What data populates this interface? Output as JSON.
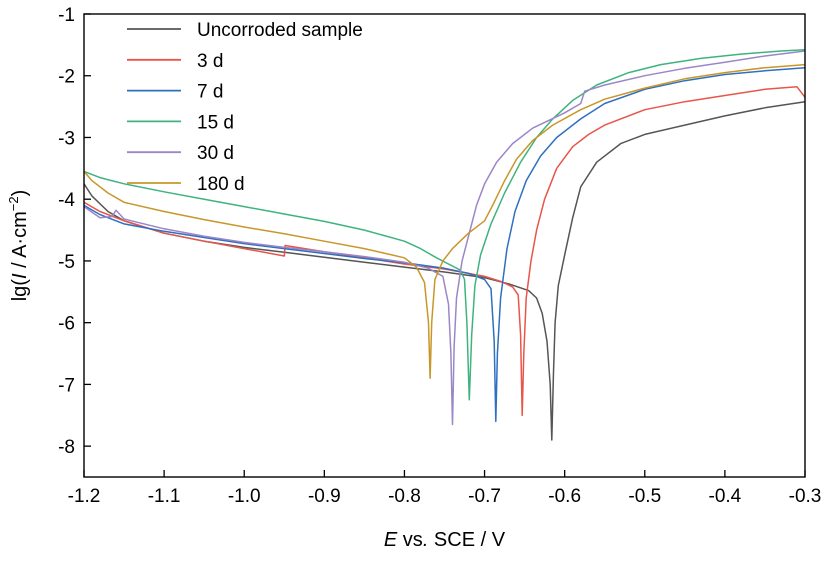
{
  "chart_data": {
    "type": "line",
    "xlabel": {
      "italic": "E",
      "mid": " vs",
      "italic2": ".",
      "rest": " SCE / V"
    },
    "xlabel_text": "E vs. SCE / V",
    "ylabel_text": "lg(I / A·cm−2)",
    "ylabel": {
      "pre": "lg(",
      "italic": "I",
      "mid": " / A·cm",
      "sup": "−2",
      "post": ")"
    },
    "xlim": [
      -1.2,
      -0.3
    ],
    "ylim": [
      -8.5,
      -1
    ],
    "xticks": [
      "-1.2",
      "-1.1",
      "-1.0",
      "-0.9",
      "-0.8",
      "-0.7",
      "-0.6",
      "-0.5",
      "-0.4",
      "-0.3"
    ],
    "yticks": [
      "-1",
      "-2",
      "-3",
      "-4",
      "-5",
      "-6",
      "-7",
      "-8"
    ],
    "legend_position": "top-left",
    "grid": false,
    "series": [
      {
        "name": "Uncorroded sample",
        "color": "#555555",
        "points": [
          [
            -1.2,
            -3.75
          ],
          [
            -1.19,
            -3.95
          ],
          [
            -1.17,
            -4.2
          ],
          [
            -1.15,
            -4.35
          ],
          [
            -1.1,
            -4.55
          ],
          [
            -1.05,
            -4.68
          ],
          [
            -1.0,
            -4.78
          ],
          [
            -0.95,
            -4.86
          ],
          [
            -0.9,
            -4.94
          ],
          [
            -0.85,
            -5.02
          ],
          [
            -0.8,
            -5.1
          ],
          [
            -0.75,
            -5.18
          ],
          [
            -0.7,
            -5.27
          ],
          [
            -0.67,
            -5.37
          ],
          [
            -0.645,
            -5.48
          ],
          [
            -0.635,
            -5.6
          ],
          [
            -0.628,
            -5.85
          ],
          [
            -0.622,
            -6.3
          ],
          [
            -0.618,
            -7.0
          ],
          [
            -0.616,
            -7.9
          ],
          [
            -0.614,
            -6.8
          ],
          [
            -0.612,
            -6.0
          ],
          [
            -0.608,
            -5.4
          ],
          [
            -0.6,
            -4.9
          ],
          [
            -0.59,
            -4.3
          ],
          [
            -0.58,
            -3.8
          ],
          [
            -0.56,
            -3.4
          ],
          [
            -0.53,
            -3.1
          ],
          [
            -0.5,
            -2.95
          ],
          [
            -0.45,
            -2.8
          ],
          [
            -0.4,
            -2.65
          ],
          [
            -0.35,
            -2.52
          ],
          [
            -0.3,
            -2.42
          ]
        ]
      },
      {
        "name": "3 d",
        "color": "#e8554a",
        "points": [
          [
            -1.2,
            -4.05
          ],
          [
            -1.18,
            -4.2
          ],
          [
            -1.15,
            -4.35
          ],
          [
            -1.1,
            -4.55
          ],
          [
            -1.05,
            -4.68
          ],
          [
            -1.0,
            -4.8
          ],
          [
            -0.95,
            -4.92
          ],
          [
            -0.949,
            -4.75
          ],
          [
            -0.9,
            -4.85
          ],
          [
            -0.85,
            -4.95
          ],
          [
            -0.8,
            -5.05
          ],
          [
            -0.75,
            -5.13
          ],
          [
            -0.7,
            -5.25
          ],
          [
            -0.68,
            -5.33
          ],
          [
            -0.665,
            -5.42
          ],
          [
            -0.658,
            -5.55
          ],
          [
            -0.655,
            -6.2
          ],
          [
            -0.653,
            -7.5
          ],
          [
            -0.651,
            -6.5
          ],
          [
            -0.648,
            -5.6
          ],
          [
            -0.642,
            -5.0
          ],
          [
            -0.635,
            -4.5
          ],
          [
            -0.625,
            -4.0
          ],
          [
            -0.61,
            -3.5
          ],
          [
            -0.59,
            -3.15
          ],
          [
            -0.57,
            -2.95
          ],
          [
            -0.55,
            -2.8
          ],
          [
            -0.5,
            -2.55
          ],
          [
            -0.45,
            -2.42
          ],
          [
            -0.4,
            -2.32
          ],
          [
            -0.35,
            -2.22
          ],
          [
            -0.31,
            -2.18
          ],
          [
            -0.3,
            -2.35
          ]
        ]
      },
      {
        "name": "7 d",
        "color": "#2f6fbf",
        "points": [
          [
            -1.2,
            -4.1
          ],
          [
            -1.18,
            -4.25
          ],
          [
            -1.15,
            -4.4
          ],
          [
            -1.1,
            -4.52
          ],
          [
            -1.05,
            -4.62
          ],
          [
            -1.0,
            -4.72
          ],
          [
            -0.95,
            -4.8
          ],
          [
            -0.9,
            -4.88
          ],
          [
            -0.85,
            -4.96
          ],
          [
            -0.8,
            -5.03
          ],
          [
            -0.75,
            -5.12
          ],
          [
            -0.72,
            -5.2
          ],
          [
            -0.7,
            -5.3
          ],
          [
            -0.692,
            -5.45
          ],
          [
            -0.688,
            -6.3
          ],
          [
            -0.686,
            -7.6
          ],
          [
            -0.684,
            -6.5
          ],
          [
            -0.68,
            -5.6
          ],
          [
            -0.672,
            -4.8
          ],
          [
            -0.662,
            -4.2
          ],
          [
            -0.648,
            -3.7
          ],
          [
            -0.63,
            -3.3
          ],
          [
            -0.61,
            -3.0
          ],
          [
            -0.58,
            -2.7
          ],
          [
            -0.55,
            -2.45
          ],
          [
            -0.5,
            -2.22
          ],
          [
            -0.45,
            -2.08
          ],
          [
            -0.4,
            -1.98
          ],
          [
            -0.35,
            -1.92
          ],
          [
            -0.3,
            -1.87
          ]
        ]
      },
      {
        "name": "15 d",
        "color": "#3fb37f",
        "points": [
          [
            -1.2,
            -3.55
          ],
          [
            -1.18,
            -3.65
          ],
          [
            -1.15,
            -3.75
          ],
          [
            -1.1,
            -3.88
          ],
          [
            -1.05,
            -4.0
          ],
          [
            -1.0,
            -4.12
          ],
          [
            -0.95,
            -4.24
          ],
          [
            -0.9,
            -4.36
          ],
          [
            -0.85,
            -4.5
          ],
          [
            -0.8,
            -4.68
          ],
          [
            -0.78,
            -4.8
          ],
          [
            -0.76,
            -4.95
          ],
          [
            -0.745,
            -5.05
          ],
          [
            -0.73,
            -5.15
          ],
          [
            -0.725,
            -5.3
          ],
          [
            -0.722,
            -6.0
          ],
          [
            -0.719,
            -7.25
          ],
          [
            -0.716,
            -6.2
          ],
          [
            -0.712,
            -5.4
          ],
          [
            -0.705,
            -4.9
          ],
          [
            -0.692,
            -4.4
          ],
          [
            -0.675,
            -3.9
          ],
          [
            -0.655,
            -3.4
          ],
          [
            -0.635,
            -3.0
          ],
          [
            -0.615,
            -2.7
          ],
          [
            -0.59,
            -2.4
          ],
          [
            -0.56,
            -2.15
          ],
          [
            -0.52,
            -1.95
          ],
          [
            -0.48,
            -1.82
          ],
          [
            -0.43,
            -1.72
          ],
          [
            -0.38,
            -1.65
          ],
          [
            -0.33,
            -1.6
          ],
          [
            -0.3,
            -1.58
          ]
        ]
      },
      {
        "name": "30 d",
        "color": "#9b86c8",
        "points": [
          [
            -1.2,
            -4.12
          ],
          [
            -1.18,
            -4.3
          ],
          [
            -1.165,
            -4.28
          ],
          [
            -1.16,
            -4.18
          ],
          [
            -1.15,
            -4.32
          ],
          [
            -1.1,
            -4.48
          ],
          [
            -1.05,
            -4.6
          ],
          [
            -1.0,
            -4.7
          ],
          [
            -0.95,
            -4.78
          ],
          [
            -0.9,
            -4.85
          ],
          [
            -0.85,
            -4.93
          ],
          [
            -0.8,
            -5.02
          ],
          [
            -0.77,
            -5.12
          ],
          [
            -0.752,
            -5.25
          ],
          [
            -0.745,
            -5.7
          ],
          [
            -0.742,
            -6.5
          ],
          [
            -0.74,
            -7.65
          ],
          [
            -0.738,
            -6.4
          ],
          [
            -0.735,
            -5.6
          ],
          [
            -0.728,
            -5.0
          ],
          [
            -0.72,
            -4.6
          ],
          [
            -0.71,
            -4.1
          ],
          [
            -0.7,
            -3.75
          ],
          [
            -0.685,
            -3.4
          ],
          [
            -0.665,
            -3.1
          ],
          [
            -0.64,
            -2.85
          ],
          [
            -0.6,
            -2.6
          ],
          [
            -0.58,
            -2.45
          ],
          [
            -0.575,
            -2.25
          ],
          [
            -0.55,
            -2.15
          ],
          [
            -0.5,
            -2.0
          ],
          [
            -0.45,
            -1.88
          ],
          [
            -0.4,
            -1.78
          ],
          [
            -0.35,
            -1.68
          ],
          [
            -0.3,
            -1.6
          ]
        ]
      },
      {
        "name": "180 d",
        "color": "#c9962a",
        "points": [
          [
            -1.2,
            -3.55
          ],
          [
            -1.19,
            -3.7
          ],
          [
            -1.17,
            -3.9
          ],
          [
            -1.15,
            -4.05
          ],
          [
            -1.1,
            -4.2
          ],
          [
            -1.05,
            -4.33
          ],
          [
            -1.0,
            -4.45
          ],
          [
            -0.95,
            -4.56
          ],
          [
            -0.9,
            -4.68
          ],
          [
            -0.85,
            -4.8
          ],
          [
            -0.8,
            -4.95
          ],
          [
            -0.785,
            -5.1
          ],
          [
            -0.775,
            -5.35
          ],
          [
            -0.77,
            -6.0
          ],
          [
            -0.768,
            -6.9
          ],
          [
            -0.766,
            -6.0
          ],
          [
            -0.762,
            -5.3
          ],
          [
            -0.752,
            -5.0
          ],
          [
            -0.74,
            -4.8
          ],
          [
            -0.72,
            -4.55
          ],
          [
            -0.7,
            -4.35
          ],
          [
            -0.69,
            -4.1
          ],
          [
            -0.675,
            -3.7
          ],
          [
            -0.66,
            -3.35
          ],
          [
            -0.64,
            -3.05
          ],
          [
            -0.615,
            -2.8
          ],
          [
            -0.58,
            -2.55
          ],
          [
            -0.55,
            -2.38
          ],
          [
            -0.5,
            -2.2
          ],
          [
            -0.45,
            -2.05
          ],
          [
            -0.4,
            -1.95
          ],
          [
            -0.35,
            -1.87
          ],
          [
            -0.3,
            -1.82
          ]
        ]
      }
    ]
  }
}
